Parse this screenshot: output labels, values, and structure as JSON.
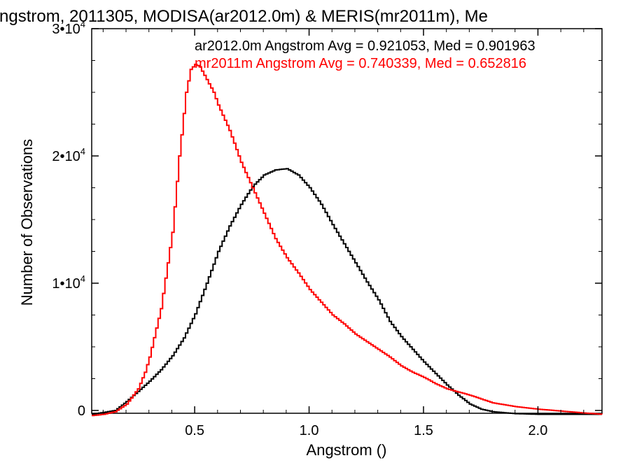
{
  "chart_data": {
    "type": "line",
    "title": "ngstrom, 2011305, MODISA(ar2012.0m) & MERIS(mr2011m), Me",
    "xlabel": "Angstrom ()",
    "ylabel": "Number of Observations",
    "xlim": [
      0.05,
      2.28
    ],
    "ylim": [
      0,
      30000
    ],
    "x_ticks": [
      {
        "value": 0.5,
        "label": "0.5"
      },
      {
        "value": 1.0,
        "label": "1.0"
      },
      {
        "value": 1.5,
        "label": "1.5"
      },
      {
        "value": 2.0,
        "label": "2.0"
      }
    ],
    "y_ticks": [
      {
        "value": 0,
        "mantissa": "0",
        "exponent": ""
      },
      {
        "value": 10000,
        "mantissa": "1•10",
        "exponent": "4"
      },
      {
        "value": 20000,
        "mantissa": "2•10",
        "exponent": "4"
      },
      {
        "value": 30000,
        "mantissa": "3•10",
        "exponent": "4"
      }
    ],
    "legend_position": "top-right",
    "legend": [
      {
        "text": "ar2012.0m Angstrom Avg = 0.921053, Med = 0.901963",
        "color": "#000000"
      },
      {
        "text": "mr2011m Angstrom Avg = 0.740339, Med = 0.652816",
        "color": "#ff0000"
      }
    ],
    "step_style": "histogram",
    "series": [
      {
        "color": "#000000",
        "x": [
          0.05,
          0.1,
          0.15,
          0.2,
          0.25,
          0.3,
          0.35,
          0.4,
          0.45,
          0.5,
          0.55,
          0.6,
          0.65,
          0.7,
          0.75,
          0.8,
          0.85,
          0.9,
          0.95,
          1.0,
          1.05,
          1.1,
          1.15,
          1.2,
          1.25,
          1.3,
          1.35,
          1.4,
          1.45,
          1.5,
          1.55,
          1.6,
          1.65,
          1.7,
          1.75,
          1.8,
          1.9,
          2.0,
          2.1,
          2.2,
          2.28
        ],
        "values": [
          -300,
          -150,
          0,
          700,
          1500,
          2300,
          3200,
          4300,
          5700,
          7600,
          10000,
          12500,
          14500,
          16200,
          17600,
          18500,
          18900,
          19000,
          18500,
          17500,
          16200,
          14600,
          13100,
          11600,
          10100,
          8700,
          7000,
          5800,
          4800,
          3800,
          2900,
          2000,
          1200,
          500,
          100,
          -100,
          -250,
          -300,
          -300,
          -300,
          -300
        ]
      },
      {
        "color": "#ff0000",
        "x": [
          0.05,
          0.1,
          0.15,
          0.2,
          0.25,
          0.28,
          0.3,
          0.35,
          0.4,
          0.43,
          0.46,
          0.48,
          0.5,
          0.52,
          0.55,
          0.58,
          0.6,
          0.65,
          0.7,
          0.75,
          0.8,
          0.85,
          0.9,
          0.95,
          1.0,
          1.05,
          1.1,
          1.15,
          1.2,
          1.25,
          1.3,
          1.35,
          1.4,
          1.45,
          1.5,
          1.55,
          1.6,
          1.7,
          1.8,
          1.9,
          2.0,
          2.1,
          2.2,
          2.28
        ],
        "values": [
          -400,
          -300,
          -100,
          500,
          1700,
          3000,
          4200,
          8000,
          14000,
          20000,
          25000,
          26800,
          27200,
          27000,
          26000,
          25000,
          24000,
          22000,
          19500,
          17500,
          15500,
          13500,
          12000,
          10800,
          9500,
          8500,
          7500,
          6800,
          6000,
          5400,
          4800,
          4200,
          3500,
          3000,
          2600,
          2100,
          1700,
          1200,
          600,
          300,
          100,
          -50,
          -200,
          -300
        ]
      }
    ]
  }
}
